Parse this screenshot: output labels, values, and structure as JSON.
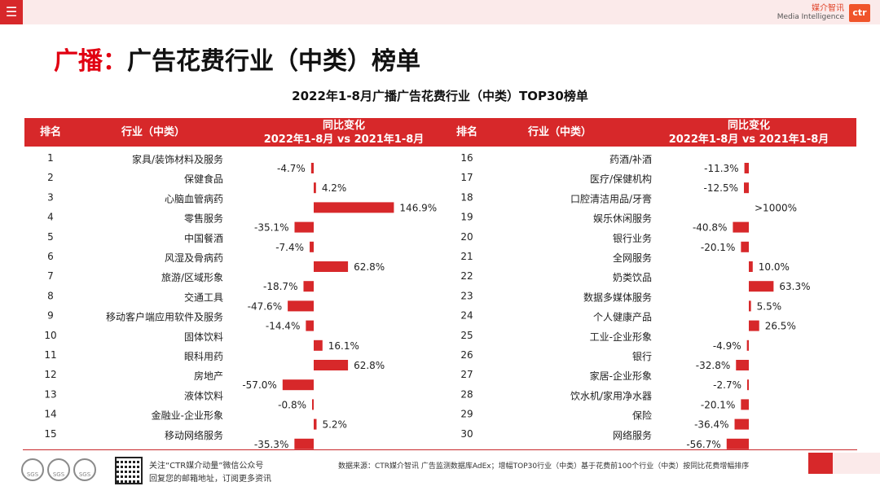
{
  "header": {
    "menu_icon": "menu-icon",
    "brand_cn": "媒介智讯",
    "brand_en": "Media Intelligence",
    "brand_logo": "ctr"
  },
  "page_title": {
    "prefix": "广播：",
    "main": "广告花费行业（中类）榜单"
  },
  "colors": {
    "accent": "#d7282a",
    "bar": "#d7282a"
  },
  "chart_data": {
    "type": "table",
    "title": "2022年1-8月广播广告花费行业（中类）TOP30榜单",
    "columns": {
      "rank": "排名",
      "industry": "行业（中类）",
      "change_line1": "同比变化",
      "change_line2": "2022年1-8月 vs 2021年1-8月"
    },
    "left": [
      {
        "rank": "1",
        "name": "家具/装饰材料及服务",
        "value": -4.7,
        "label": "-4.7%"
      },
      {
        "rank": "2",
        "name": "保健食品",
        "value": 4.2,
        "label": "4.2%"
      },
      {
        "rank": "3",
        "name": "心脑血管病药",
        "value": 146.9,
        "label": "146.9%"
      },
      {
        "rank": "4",
        "name": "零售服务",
        "value": -35.1,
        "label": "-35.1%"
      },
      {
        "rank": "5",
        "name": "中国餐酒",
        "value": -7.4,
        "label": "-7.4%"
      },
      {
        "rank": "6",
        "name": "风湿及骨病药",
        "value": 62.8,
        "label": "62.8%"
      },
      {
        "rank": "7",
        "name": "旅游/区域形象",
        "value": -18.7,
        "label": "-18.7%"
      },
      {
        "rank": "8",
        "name": "交通工具",
        "value": -47.6,
        "label": "-47.6%"
      },
      {
        "rank": "9",
        "name": "移动客户端应用软件及服务",
        "value": -14.4,
        "label": "-14.4%"
      },
      {
        "rank": "10",
        "name": "固体饮料",
        "value": 16.1,
        "label": "16.1%"
      },
      {
        "rank": "11",
        "name": "眼科用药",
        "value": 62.8,
        "label": "62.8%"
      },
      {
        "rank": "12",
        "name": "房地产",
        "value": -57.0,
        "label": "-57.0%"
      },
      {
        "rank": "13",
        "name": "液体饮料",
        "value": -0.8,
        "label": "-0.8%"
      },
      {
        "rank": "14",
        "name": "金融业-企业形象",
        "value": 5.2,
        "label": "5.2%"
      },
      {
        "rank": "15",
        "name": "移动网络服务",
        "value": -35.3,
        "label": "-35.3%"
      }
    ],
    "right": [
      {
        "rank": "16",
        "name": "药酒/补酒",
        "value": -11.3,
        "label": "-11.3%"
      },
      {
        "rank": "17",
        "name": "医疗/保健机构",
        "value": -12.5,
        "label": "-12.5%"
      },
      {
        "rank": "18",
        "name": "口腔清洁用品/牙膏",
        "value": null,
        "label": ">1000%"
      },
      {
        "rank": "19",
        "name": "娱乐休闲服务",
        "value": -40.8,
        "label": "-40.8%"
      },
      {
        "rank": "20",
        "name": "银行业务",
        "value": -20.1,
        "label": "-20.1%"
      },
      {
        "rank": "21",
        "name": "全网服务",
        "value": 10.0,
        "label": "10.0%"
      },
      {
        "rank": "22",
        "name": "奶类饮品",
        "value": 63.3,
        "label": "63.3%"
      },
      {
        "rank": "23",
        "name": "数据多媒体服务",
        "value": 5.5,
        "label": "5.5%"
      },
      {
        "rank": "24",
        "name": "个人健康产品",
        "value": 26.5,
        "label": "26.5%"
      },
      {
        "rank": "25",
        "name": "工业-企业形象",
        "value": -4.9,
        "label": "-4.9%"
      },
      {
        "rank": "26",
        "name": "银行",
        "value": -32.8,
        "label": "-32.8%"
      },
      {
        "rank": "27",
        "name": "家居-企业形象",
        "value": -2.7,
        "label": "-2.7%"
      },
      {
        "rank": "28",
        "name": "饮水机/家用净水器",
        "value": -20.1,
        "label": "-20.1%"
      },
      {
        "rank": "29",
        "name": "保险",
        "value": -36.4,
        "label": "-36.4%"
      },
      {
        "rank": "30",
        "name": "网络服务",
        "value": -56.7,
        "label": "-56.7%"
      }
    ]
  },
  "footer": {
    "follow_line1": "关注“CTR媒介动量”微信公众号",
    "follow_line2": "回复您的邮箱地址，订阅更多资讯",
    "source": "数据来源：CTR媒介智讯 广告监测数据库AdEx；增幅TOP30行业（中类）基于花费前100个行业（中类）按同比花费增幅排序",
    "cert_label": "SGS"
  }
}
